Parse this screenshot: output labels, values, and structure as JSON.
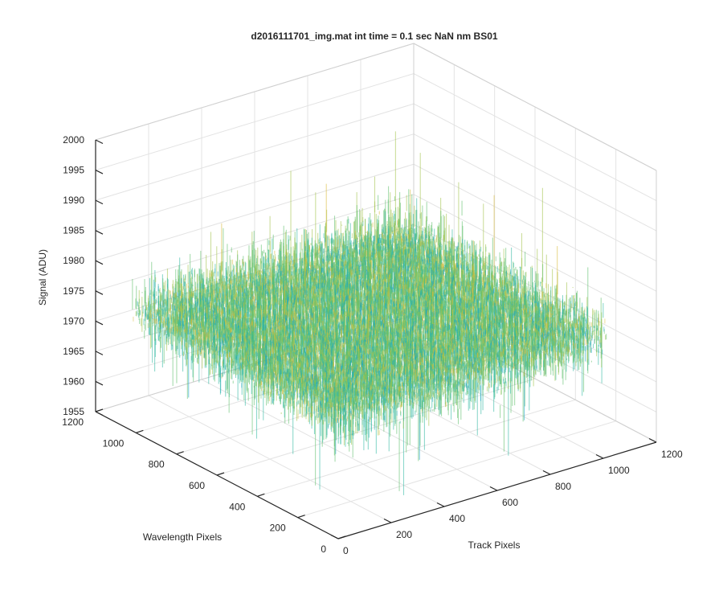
{
  "chart_data": {
    "type": "surface",
    "title": "d2016111701_img.mat int time = 0.1 sec  NaN nm BS01",
    "xlabel": "Track Pixels",
    "ylabel": "Wavelength Pixels",
    "zlabel": "Signal (ADU)",
    "xlim": [
      0,
      1200
    ],
    "ylim": [
      0,
      1200
    ],
    "zlim": [
      1955,
      2000
    ],
    "xticks": [
      0,
      200,
      400,
      600,
      800,
      1000,
      1200
    ],
    "yticks": [
      0,
      200,
      400,
      600,
      800,
      1000,
      1200
    ],
    "zticks": [
      1955,
      1960,
      1965,
      1970,
      1975,
      1980,
      1985,
      1990,
      1995,
      2000
    ],
    "data_extent": {
      "track_pixels": [
        0,
        1024
      ],
      "wavelength_pixels": [
        0,
        1024
      ]
    },
    "signal_mean": 1975,
    "signal_range": [
      1962,
      1995
    ],
    "colormap": [
      "#1aa3c7",
      "#2fb8a3",
      "#5fbf6c",
      "#a2c24a",
      "#d9b93a"
    ],
    "grid": true,
    "view": "3d-isometric"
  }
}
